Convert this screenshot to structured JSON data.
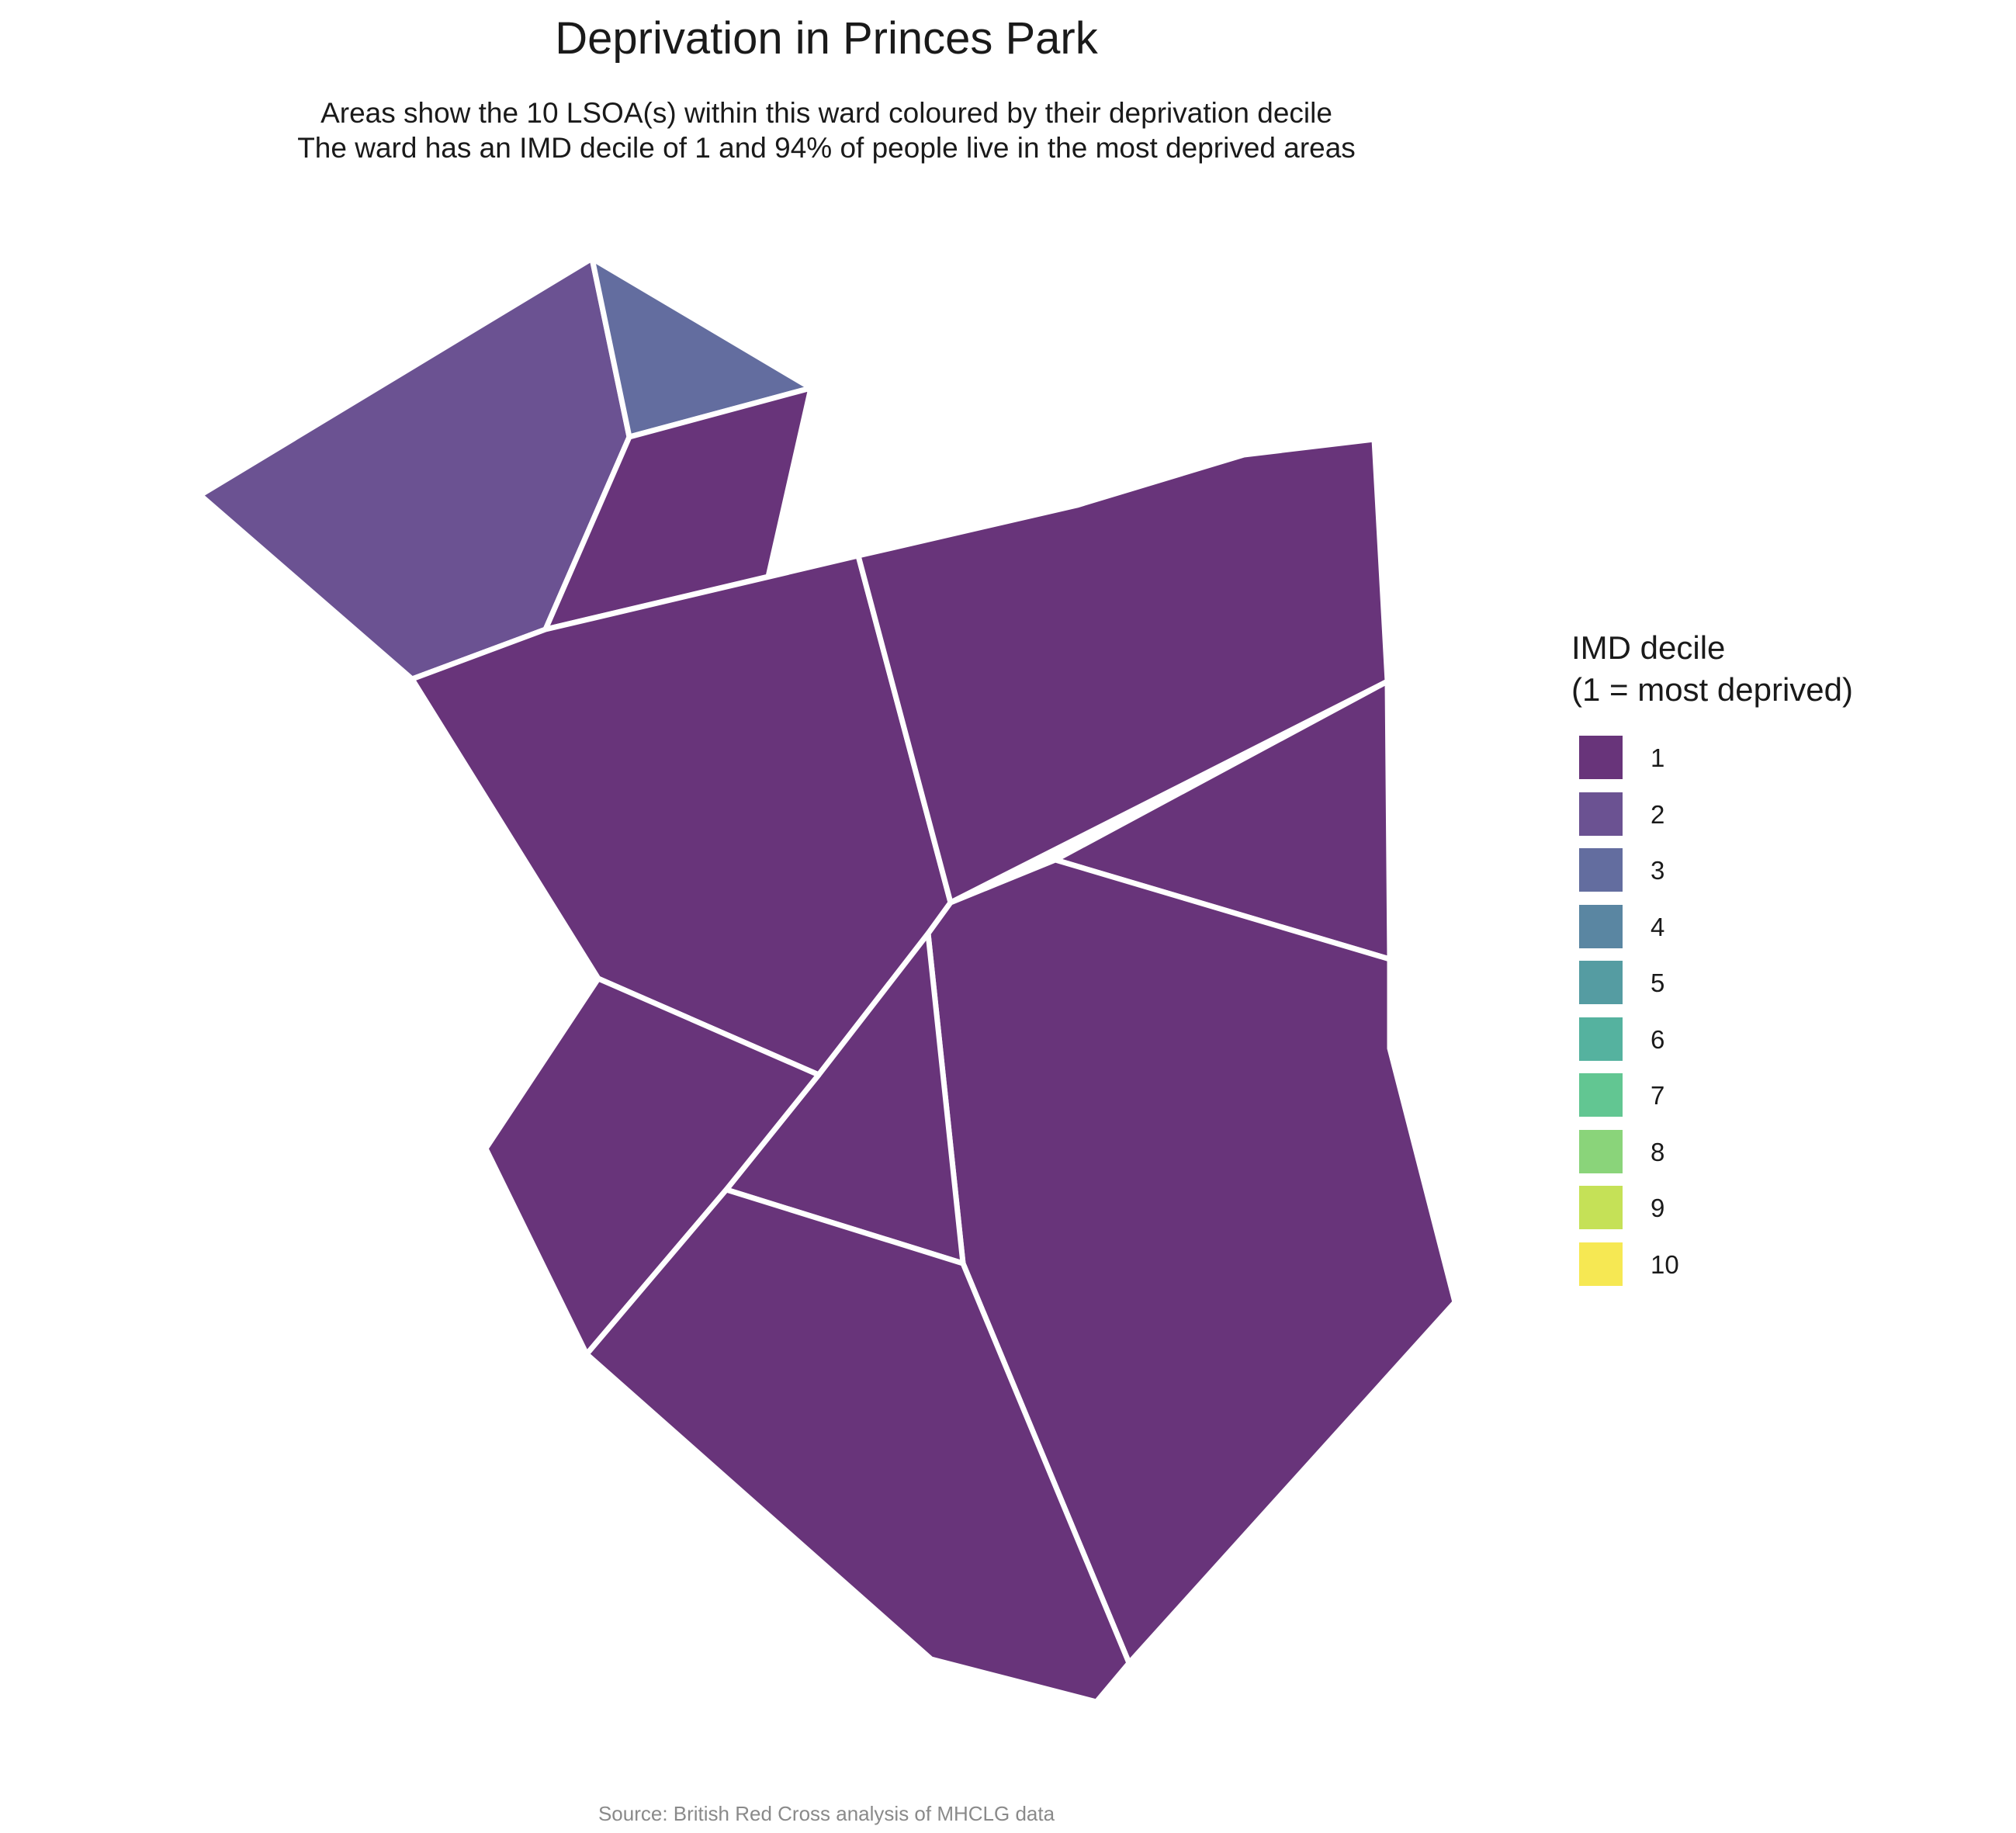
{
  "title": "Deprivation in Princes Park",
  "subtitle": [
    "Areas show the 10 LSOA(s) within this ward coloured by their deprivation decile",
    "The ward has an IMD decile of 1 and 94% of people live in the most deprived areas"
  ],
  "ward": "Princes Park",
  "lsoa_count": 10,
  "ward_imd_decile": 1,
  "percent_most_deprived": 94,
  "legend": {
    "title_line1": "IMD decile",
    "title_line2": "(1 = most deprived)",
    "items": [
      {
        "label": "1",
        "color": "#68347A"
      },
      {
        "label": "2",
        "color": "#6B5292"
      },
      {
        "label": "3",
        "color": "#636D9F"
      },
      {
        "label": "4",
        "color": "#5A86A2"
      },
      {
        "label": "5",
        "color": "#559CA2"
      },
      {
        "label": "6",
        "color": "#55B29F"
      },
      {
        "label": "7",
        "color": "#62C692"
      },
      {
        "label": "8",
        "color": "#8AD47A"
      },
      {
        "label": "9",
        "color": "#C5E157"
      },
      {
        "label": "10",
        "color": "#F6E853"
      }
    ]
  },
  "areas": [
    {
      "decile": 2
    },
    {
      "decile": 3
    },
    {
      "decile": 1
    },
    {
      "decile": 1
    },
    {
      "decile": 1
    },
    {
      "decile": 1
    },
    {
      "decile": 1
    },
    {
      "decile": 1
    },
    {
      "decile": 1
    },
    {
      "decile": 1
    }
  ],
  "border_color": "#FFFFFF",
  "source": "Source: British Red Cross analysis of MHCLG data"
}
